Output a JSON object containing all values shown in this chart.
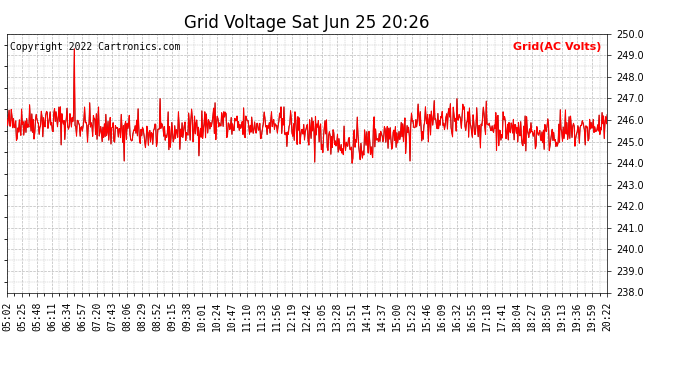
{
  "title": "Grid Voltage Sat Jun 25 20:26",
  "ylabel": "Grid(AC Volts)",
  "copyright": "Copyright 2022 Cartronics.com",
  "ylim": [
    238.0,
    250.0
  ],
  "yticks": [
    238.0,
    239.0,
    240.0,
    241.0,
    242.0,
    243.0,
    244.0,
    245.0,
    246.0,
    247.0,
    248.0,
    249.0,
    250.0
  ],
  "line_color": "red",
  "bg_color": "#ffffff",
  "grid_color": "#bbbbbb",
  "title_fontsize": 12,
  "tick_fontsize": 7,
  "copyright_fontsize": 7,
  "legend_fontsize": 8,
  "xtick_labels": [
    "05:02",
    "05:25",
    "05:48",
    "06:11",
    "06:34",
    "06:57",
    "07:20",
    "07:43",
    "08:06",
    "08:29",
    "08:52",
    "09:15",
    "09:38",
    "10:01",
    "10:24",
    "10:47",
    "11:10",
    "11:33",
    "11:56",
    "12:19",
    "12:42",
    "13:05",
    "13:28",
    "13:51",
    "14:14",
    "14:37",
    "15:00",
    "15:23",
    "15:46",
    "16:09",
    "16:32",
    "16:55",
    "17:18",
    "17:41",
    "18:04",
    "18:27",
    "18:50",
    "19:13",
    "19:36",
    "19:59",
    "20:22"
  ],
  "seed": 42,
  "n_points": 820,
  "mean": 245.8,
  "std": 0.7,
  "spike_index": 92,
  "spike_value": 249.3,
  "low1_index": 160,
  "low1_value": 244.1
}
